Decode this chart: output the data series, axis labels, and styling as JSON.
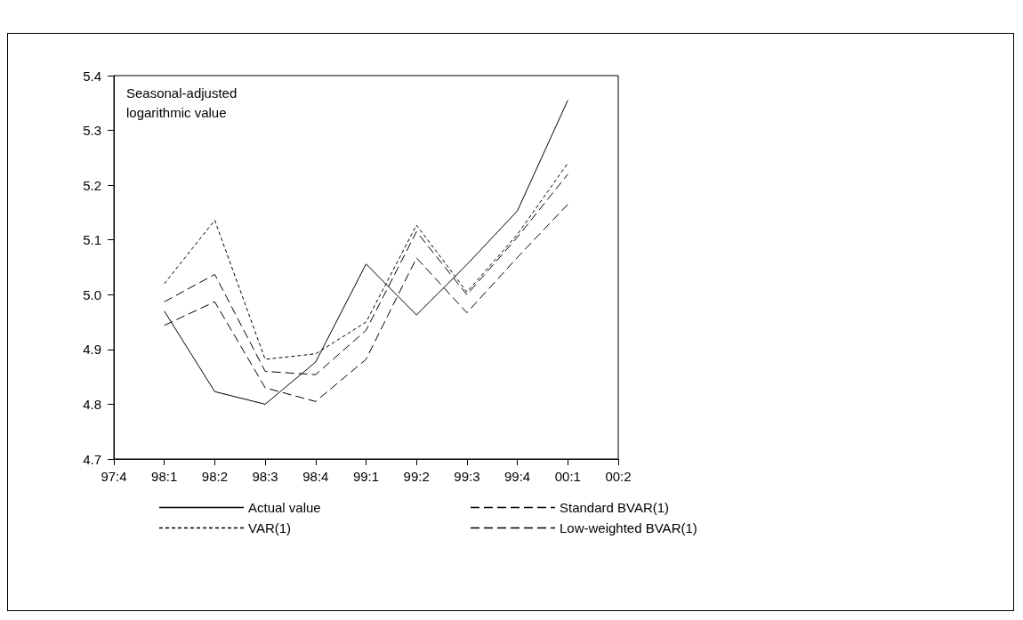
{
  "chart_data": {
    "type": "line",
    "ylabel": "Seasonal-adjusted logarithmic value",
    "categories": [
      "97:4",
      "98:1",
      "98:2",
      "98:3",
      "98:4",
      "99:1",
      "99:2",
      "99:3",
      "99:4",
      "00:1",
      "00:2"
    ],
    "series": [
      {
        "name": "Actual value",
        "color": "#000000",
        "line_style": "solid",
        "values": [
          null,
          4.97,
          4.823,
          4.8,
          4.877,
          5.056,
          4.963,
          5.055,
          5.153,
          5.355,
          null
        ]
      },
      {
        "name": "VAR(1)",
        "color": "#000000",
        "line_style": "dotted",
        "values": [
          null,
          5.02,
          5.136,
          4.882,
          4.892,
          4.95,
          5.127,
          5.005,
          5.11,
          5.24,
          null
        ]
      },
      {
        "name": "Standard BVAR(1)",
        "color": "#000000",
        "line_style": "dashed",
        "values": [
          null,
          4.987,
          5.037,
          4.86,
          4.854,
          4.935,
          5.115,
          5.0,
          5.105,
          5.22,
          null
        ]
      },
      {
        "name": "Low-weighted BVAR(1)",
        "color": "#000000",
        "line_style": "dashed",
        "values": [
          null,
          4.944,
          4.987,
          4.83,
          4.805,
          4.882,
          5.067,
          4.967,
          5.068,
          5.165,
          null
        ]
      }
    ],
    "ylim": [
      4.7,
      5.4
    ],
    "yticks": [
      4.7,
      4.8,
      4.9,
      {
        "value": 5.0,
        "label": "5.0"
      },
      5.1,
      5.2,
      5.3,
      5.4
    ],
    "grid": false,
    "legend": "bottom",
    "marker": "none"
  }
}
